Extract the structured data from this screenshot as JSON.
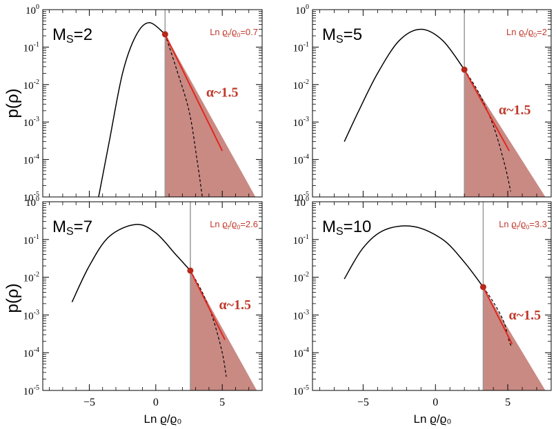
{
  "colors": {
    "shade": "#c98a84",
    "powerlaw_line": "#e0281e",
    "marker": "#b5291b",
    "threshold_line": "#999999",
    "lognormal_curve": "#000000",
    "annotation": "#c0392b"
  },
  "axis_titles": {
    "ylabel": "p(ρ)",
    "xlabel": "Ln ϱ/ϱ₀"
  },
  "chart_data": [
    {
      "type": "line",
      "mach_label": "Ms=2",
      "mach_prefix": "M",
      "mach_sub": "S",
      "mach_value": "=2",
      "threshold_label": "Ln ϱt/ϱ0=0.7",
      "threshold_prefix": "Ln ϱ",
      "threshold_sub": "t",
      "threshold_suffix": "/ϱ",
      "threshold_sub2": "0",
      "threshold_value": "=0.7",
      "slope_label": "α~1.5",
      "xlim": [
        -8.5,
        8
      ],
      "ylim": [
        1e-05,
        1
      ],
      "yscale": "log",
      "lognormal": {
        "x": [
          -4.3,
          -3.5,
          -2.5,
          -1.5,
          -0.5,
          0.7
        ],
        "y": [
          1e-05,
          0.0003,
          0.02,
          0.2,
          0.45,
          0.22
        ]
      },
      "threshold_x": 0.7,
      "marker": {
        "x": 0.7,
        "y": 0.22
      },
      "power_law": {
        "x": [
          0.7,
          5.0
        ],
        "y": [
          0.22,
          0.00017
        ]
      },
      "dashed_cutoff": {
        "x": [
          0.7,
          1.5,
          2.5,
          3.1,
          3.5
        ],
        "y": [
          0.22,
          0.03,
          0.002,
          0.0001,
          1e-05
        ]
      },
      "shaded_region": {
        "x": [
          0.7,
          7.5
        ],
        "y_top": [
          0.22,
          1e-05
        ]
      }
    },
    {
      "type": "line",
      "mach_label": "Ms=5",
      "mach_prefix": "M",
      "mach_sub": "S",
      "mach_value": "=5",
      "threshold_label": "Ln ϱt/ϱ0=2",
      "threshold_prefix": "Ln ϱ",
      "threshold_sub": "t",
      "threshold_suffix": "/ϱ",
      "threshold_sub2": "0",
      "threshold_value": "=2",
      "slope_label": "α~1.5",
      "xlim": [
        -8.5,
        8
      ],
      "ylim": [
        1e-05,
        1
      ],
      "yscale": "log",
      "lognormal": {
        "x": [
          -6.3,
          -5.3,
          -4.0,
          -2.5,
          -1.0,
          0.5,
          2.0
        ],
        "y": [
          0.0003,
          0.002,
          0.02,
          0.15,
          0.3,
          0.15,
          0.025
        ]
      },
      "threshold_x": 2.0,
      "marker": {
        "x": 2.0,
        "y": 0.025
      },
      "power_law": {
        "x": [
          2.0,
          5.1
        ],
        "y": [
          0.025,
          0.00017
        ]
      },
      "dashed_cutoff": {
        "x": [
          2.0,
          3.0,
          4.0,
          4.8,
          5.2
        ],
        "y": [
          0.025,
          0.006,
          0.0008,
          7e-05,
          1.4e-05
        ]
      },
      "shaded_region": {
        "x": [
          2.0,
          7.6
        ],
        "y_top": [
          0.025,
          1e-05
        ]
      }
    },
    {
      "type": "line",
      "mach_label": "Ms=7",
      "mach_prefix": "M",
      "mach_sub": "S",
      "mach_value": "=7",
      "threshold_label": "Ln ϱt/ϱ0=2.6",
      "threshold_prefix": "Ln ϱ",
      "threshold_sub": "t",
      "threshold_suffix": "/ϱ",
      "threshold_sub2": "0",
      "threshold_value": "=2.6",
      "slope_label": "α~1.5",
      "xlim": [
        -8.5,
        8
      ],
      "ylim": [
        1e-05,
        1
      ],
      "yscale": "log",
      "lognormal": {
        "x": [
          -6.3,
          -5.0,
          -3.5,
          -1.5,
          0.0,
          1.5,
          2.6
        ],
        "y": [
          0.0022,
          0.02,
          0.12,
          0.25,
          0.15,
          0.04,
          0.015
        ]
      },
      "threshold_x": 2.6,
      "marker": {
        "x": 2.6,
        "y": 0.015
      },
      "power_law": {
        "x": [
          2.6,
          5.2
        ],
        "y": [
          0.015,
          0.00022
        ]
      },
      "dashed_cutoff": {
        "x": [
          2.6,
          3.5,
          4.3,
          5.0,
          5.3
        ],
        "y": [
          0.015,
          0.004,
          0.0008,
          0.0001,
          2.3e-05
        ]
      },
      "shaded_region": {
        "x": [
          2.6,
          7.6
        ],
        "y_top": [
          0.015,
          1e-05
        ]
      }
    },
    {
      "type": "line",
      "mach_label": "Ms=10",
      "mach_prefix": "M",
      "mach_sub": "S",
      "mach_value": "=10",
      "threshold_label": "Ln ϱt/ϱ0=3.3",
      "threshold_prefix": "Ln ϱ",
      "threshold_sub": "t",
      "threshold_suffix": "/ϱ",
      "threshold_sub2": "0",
      "threshold_value": "=3.3",
      "slope_label": "α~1.5",
      "xlim": [
        -8.5,
        8
      ],
      "ylim": [
        1e-05,
        1
      ],
      "yscale": "log",
      "lognormal": {
        "x": [
          -6.3,
          -5.0,
          -3.5,
          -1.5,
          0.5,
          2.0,
          3.3
        ],
        "y": [
          0.009,
          0.06,
          0.18,
          0.22,
          0.1,
          0.025,
          0.0055
        ]
      },
      "threshold_x": 3.3,
      "marker": {
        "x": 3.3,
        "y": 0.0055
      },
      "power_law": {
        "x": [
          3.3,
          5.3
        ],
        "y": [
          0.0055,
          0.00017
        ]
      },
      "dashed_cutoff": {
        "x": [
          3.3,
          4.0,
          4.7,
          5.1,
          5.3
        ],
        "y": [
          0.0055,
          0.0022,
          0.0007,
          0.0002,
          0.00014
        ]
      },
      "shaded_region": {
        "x": [
          3.3,
          7.6
        ],
        "y_top": [
          0.0055,
          1e-05
        ]
      }
    }
  ],
  "x_ticks": [
    {
      "value": -5,
      "label": "−5"
    },
    {
      "value": 0,
      "label": "0"
    },
    {
      "value": 5,
      "label": "5"
    }
  ],
  "y_ticks": [
    {
      "exp": 0,
      "label": "10",
      "sup": "0"
    },
    {
      "exp": -1,
      "label": "10",
      "sup": "-1"
    },
    {
      "exp": -2,
      "label": "10",
      "sup": "-2"
    },
    {
      "exp": -3,
      "label": "10",
      "sup": "-3"
    },
    {
      "exp": -4,
      "label": "10",
      "sup": "-4"
    },
    {
      "exp": -5,
      "label": "10",
      "sup": "-5"
    }
  ]
}
